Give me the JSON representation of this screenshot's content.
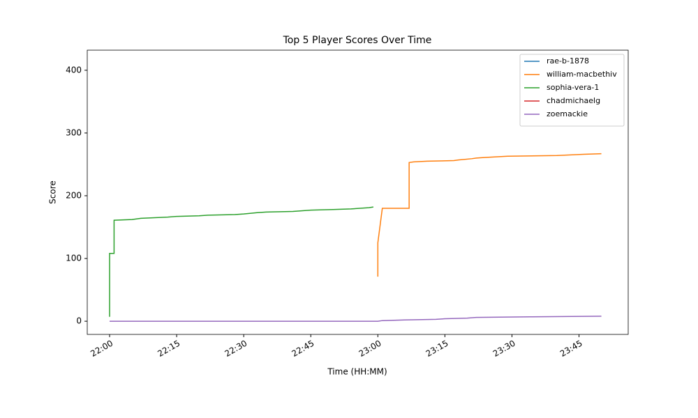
{
  "chart_data": {
    "type": "line",
    "title": "Top 5 Player Scores Over Time",
    "x_label": "Time (HH:MM)",
    "y_label": "Score",
    "xlim": [
      "21:55",
      "23:56"
    ],
    "xticks": [
      "22:00",
      "22:15",
      "22:30",
      "22:45",
      "23:00",
      "23:15",
      "23:30",
      "23:45"
    ],
    "ylim": [
      -21,
      432
    ],
    "yticks": [
      0,
      100,
      200,
      300,
      400
    ],
    "legend": "upper right",
    "series": [
      {
        "name": "rae-b-1878",
        "color": "#1f77b4",
        "x": [],
        "values": []
      },
      {
        "name": "william-macbethiv",
        "color": "#ff7f0e",
        "x": [
          "23:00",
          "23:00",
          "23:01",
          "23:07",
          "23:07",
          "23:07",
          "23:08",
          "23:11",
          "23:17",
          "23:18",
          "23:21",
          "23:22",
          "23:24",
          "23:29",
          "23:40",
          "23:43",
          "23:46",
          "23:50"
        ],
        "values": [
          71,
          125,
          180,
          180,
          241,
          253,
          254,
          255,
          256,
          257,
          259,
          260,
          261,
          263,
          264,
          265,
          266,
          267
        ]
      },
      {
        "name": "sophia-vera-1",
        "color": "#2ca02c",
        "x": [
          "22:00",
          "22:00",
          "22:01",
          "22:01",
          "22:05",
          "22:07",
          "22:10",
          "22:13",
          "22:15",
          "22:20",
          "22:22",
          "22:28",
          "22:30",
          "22:33",
          "22:35",
          "22:41",
          "22:45",
          "22:50",
          "22:54",
          "22:58",
          "22:59"
        ],
        "values": [
          7,
          108,
          108,
          161,
          162,
          164,
          165,
          166,
          167,
          168,
          169,
          170,
          171,
          173,
          174,
          175,
          177,
          178,
          179,
          181,
          182
        ]
      },
      {
        "name": "chadmichaelg",
        "color": "#d62728",
        "x": [],
        "values": []
      },
      {
        "name": "zoemackie",
        "color": "#9467bd",
        "x": [
          "22:00",
          "23:00",
          "23:01",
          "23:06",
          "23:13",
          "23:15",
          "23:20",
          "23:22",
          "23:34",
          "23:50"
        ],
        "values": [
          0,
          0,
          1,
          2,
          3,
          4,
          5,
          6,
          7,
          8
        ]
      }
    ]
  }
}
